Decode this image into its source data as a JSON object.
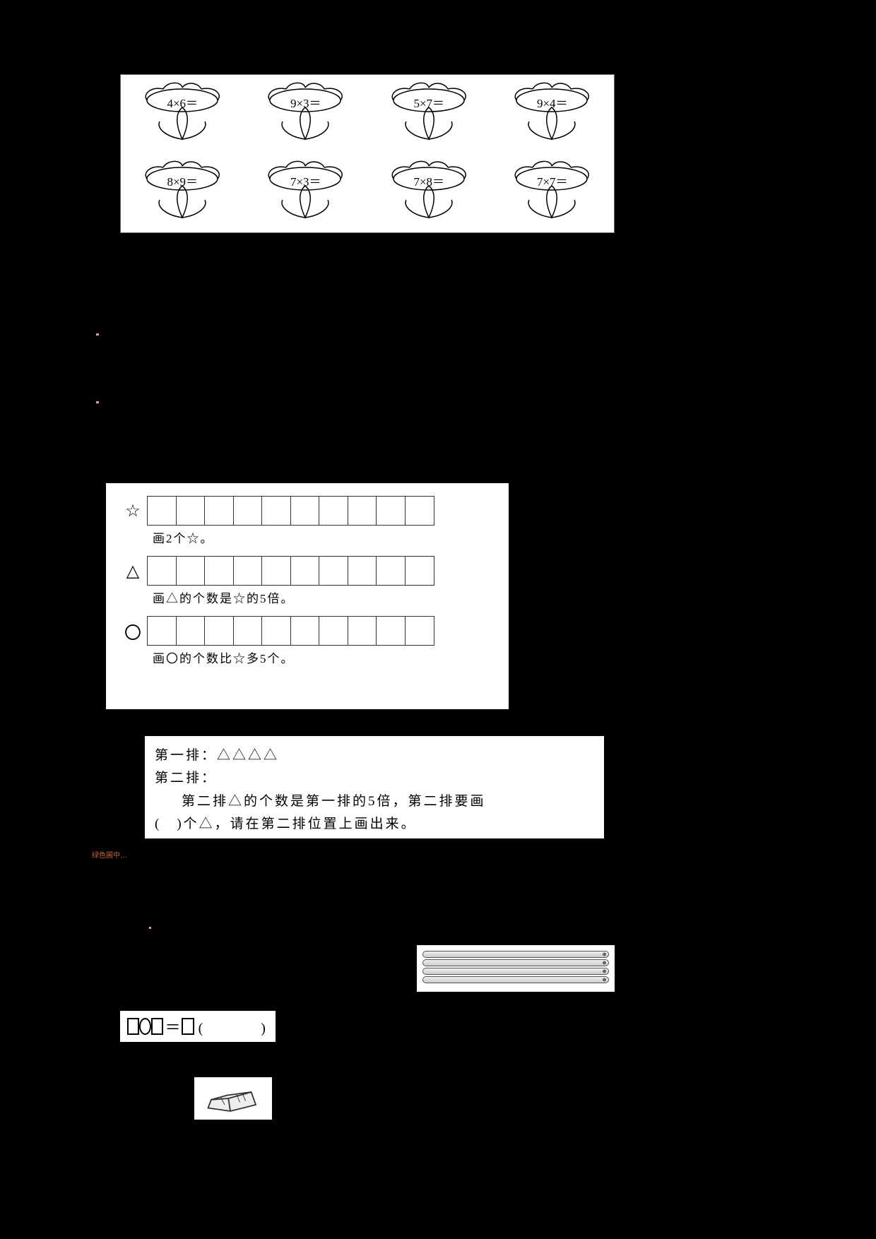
{
  "flowers": {
    "row1": [
      "4×6＝",
      "9×3＝",
      "5×7＝",
      "9×4＝"
    ],
    "row2": [
      "8×9＝",
      "7×3＝",
      "7×8＝",
      "7×7＝"
    ]
  },
  "shapes": {
    "symbols": {
      "star": "☆",
      "triangle": "△",
      "circle": "〇"
    },
    "box_count": 10,
    "instr_star": "画2个☆。",
    "instr_tri": "画△的个数是☆的5倍。",
    "instr_circle": "画〇的个数比☆多5个。"
  },
  "triangle_problem": {
    "line1": "第一排：△△△△",
    "line2": "第二排：",
    "line3": "第二排△的个数是第一排的5倍，第二排要画",
    "line4": "(　)个△，请在第二排位置上画出来。"
  },
  "watermark": "绿色圃中…",
  "sticks": {
    "count": 4
  },
  "equation": {
    "equals": "＝",
    "paren": "(　　)"
  }
}
